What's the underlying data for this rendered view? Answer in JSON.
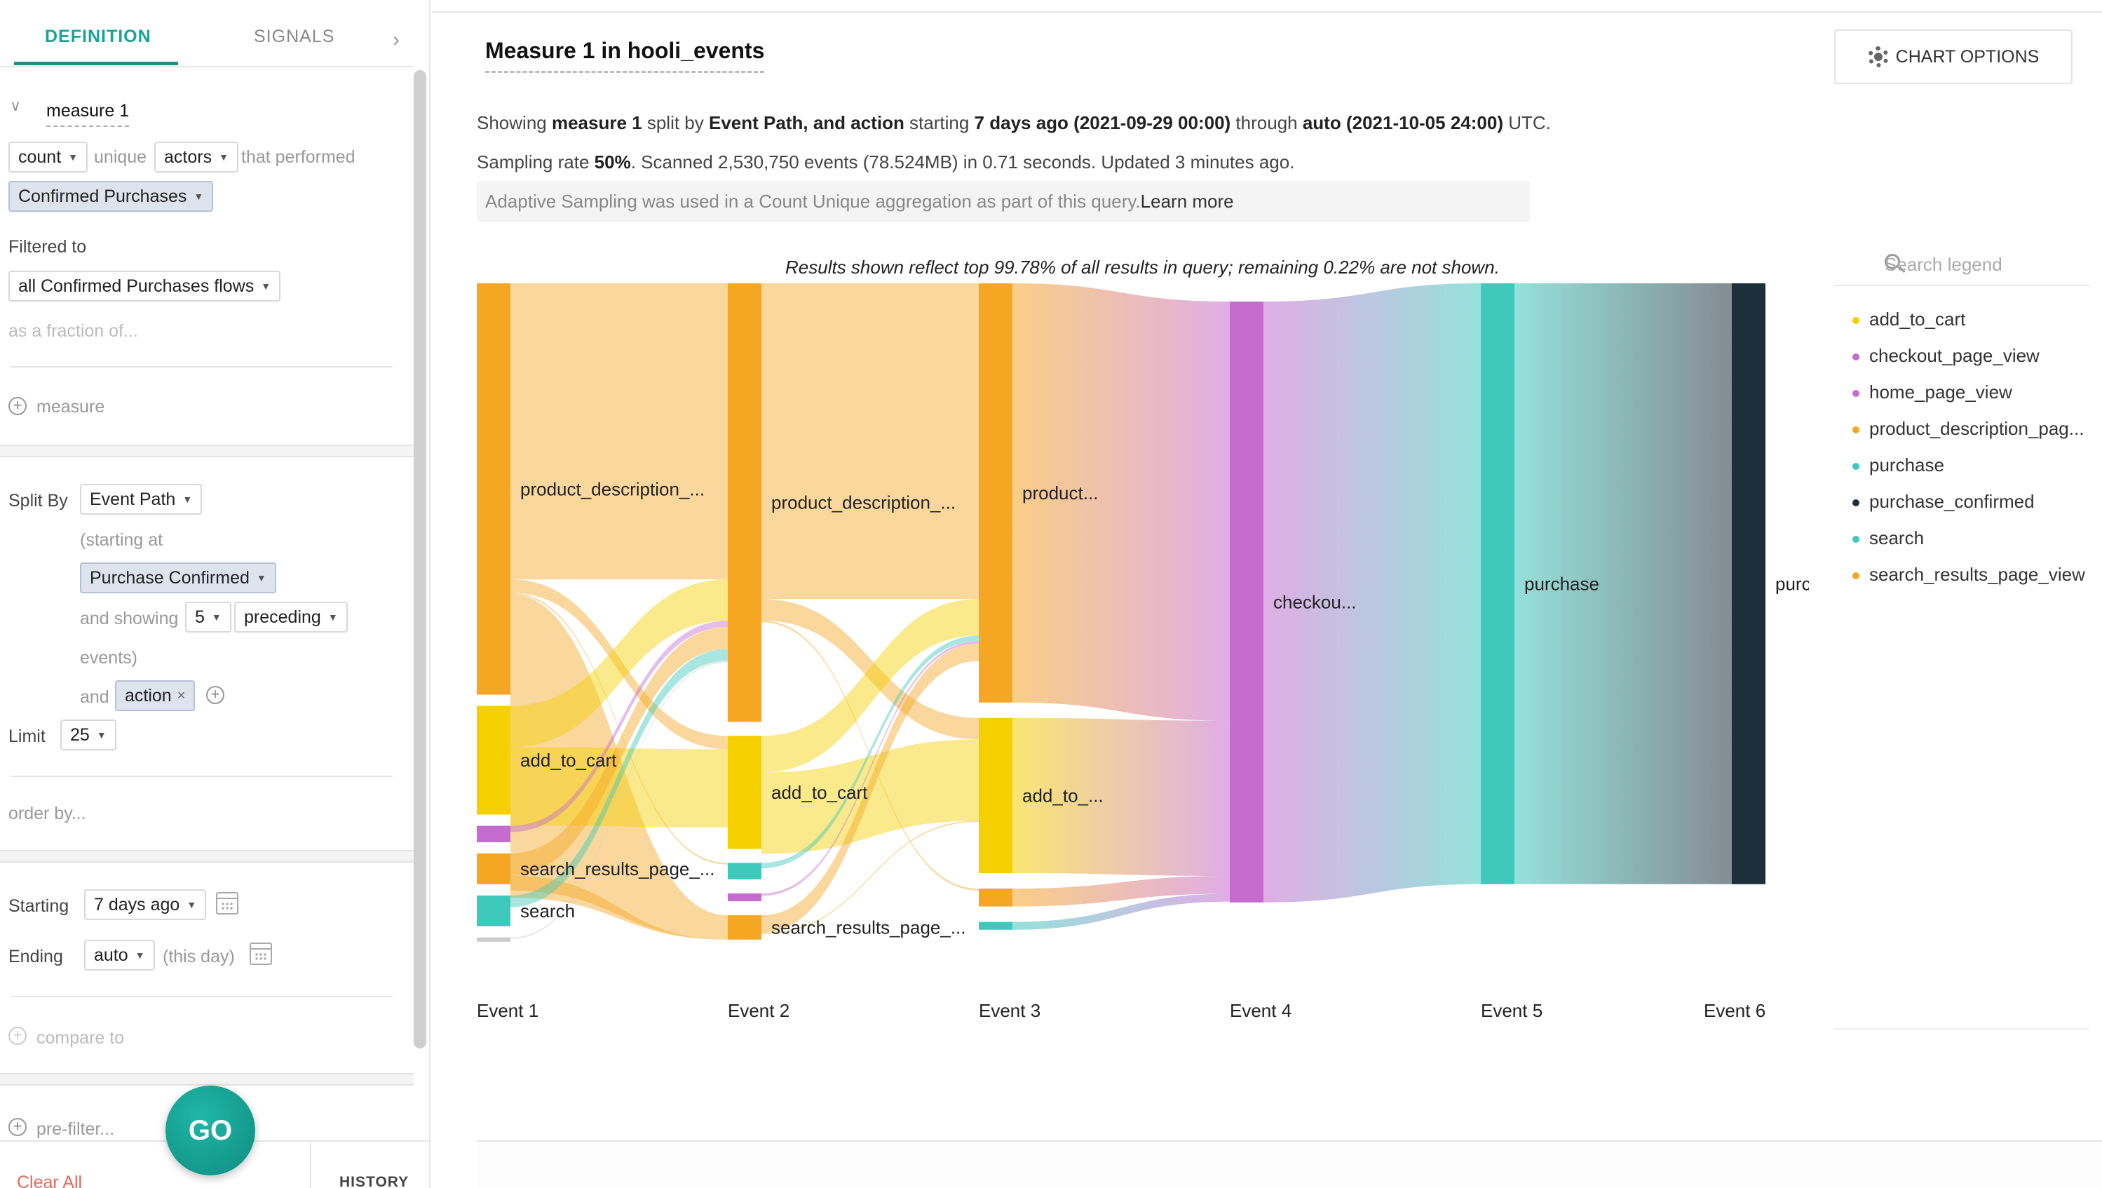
{
  "sidebar": {
    "tabs": [
      {
        "label": "DEFINITION"
      },
      {
        "label": "SIGNALS"
      }
    ],
    "collapse_icon": "chevron-right-icon",
    "measure": {
      "name": "measure 1",
      "aggregation": "count",
      "unique_label": "unique",
      "subject": "actors",
      "performed_label": "that performed",
      "event": "Confirmed Purchases",
      "filtered_label": "Filtered to",
      "filter": "all Confirmed Purchases flows",
      "fraction_label": "as a fraction of...",
      "add_measure": "measure"
    },
    "split": {
      "label": "Split By",
      "value": "Event Path",
      "starting_at": "(starting at",
      "start_event": "Purchase Confirmed",
      "showing_label": "and showing",
      "count": "5",
      "direction": "preceding",
      "events_label": "events)",
      "and_label": "and",
      "extra": "action",
      "limit_label": "Limit",
      "limit": "25",
      "order_by": "order by..."
    },
    "time": {
      "starting_label": "Starting",
      "starting": "7 days ago",
      "ending_label": "Ending",
      "ending": "auto",
      "ending_note": "(this day)",
      "compare": "compare to"
    },
    "prefilter": "pre-filter...",
    "go_label": "GO",
    "clear_all": "Clear All",
    "history": "HISTORY"
  },
  "main": {
    "title": "Measure 1 in hooli_events",
    "chart_options": "CHART OPTIONS",
    "summary": {
      "p1": "Showing ",
      "measure": "measure 1",
      "p2": " split by ",
      "split": "Event Path, and action",
      "p3": " starting ",
      "start": "7 days ago (2021-09-29 00:00)",
      "p4": " through ",
      "end": "auto (2021-10-05 24:00)",
      "p5": " UTC."
    },
    "sampling": {
      "p1": "Sampling rate ",
      "rate": "50%",
      "p2": ". Scanned 2,530,750 events (78.524MB) in 0.71 seconds. Updated 3 minutes ago."
    },
    "adaptive_note": "Adaptive Sampling was used in a Count Unique aggregation as part of this query.",
    "learn_more": "Learn more",
    "results_note": "Results shown reflect top 99.78% of all results in query; remaining 0.22% are not shown."
  },
  "legend": {
    "search_placeholder": "Search legend",
    "items": [
      {
        "label": "add_to_cart",
        "color": "#f5d000"
      },
      {
        "label": "checkout_page_view",
        "color": "#c66bd0"
      },
      {
        "label": "home_page_view",
        "color": "#c66bd0"
      },
      {
        "label": "product_description_pag...",
        "color": "#f5a623"
      },
      {
        "label": "purchase",
        "color": "#3ec9bc"
      },
      {
        "label": "purchase_confirmed",
        "color": "#1e2f3c"
      },
      {
        "label": "search",
        "color": "#3ec9bc"
      },
      {
        "label": "search_results_page_view",
        "color": "#f5a623"
      }
    ]
  },
  "chart_data": {
    "type": "sankey",
    "stages": [
      "Event 1",
      "Event 2",
      "Event 3",
      "Event 4",
      "Event 5",
      "Event 6"
    ],
    "nodes": [
      {
        "stage": 0,
        "label": "product_description_...",
        "value": 57.5,
        "color": "#f5a623"
      },
      {
        "stage": 0,
        "label": "add_to_cart",
        "value": 15.2,
        "color": "#f5d000"
      },
      {
        "stage": 0,
        "label": "",
        "value": 2.3,
        "color": "#c66bd0"
      },
      {
        "stage": 0,
        "label": "search_results_page_...",
        "value": 4.3,
        "color": "#f5a623"
      },
      {
        "stage": 0,
        "label": "search",
        "value": 4.3,
        "color": "#3ec9bc"
      },
      {
        "stage": 0,
        "label": "",
        "value": 0.6,
        "color": "#cccccc"
      },
      {
        "stage": 1,
        "label": "product_description_...",
        "value": 61.3,
        "color": "#f5a623"
      },
      {
        "stage": 1,
        "label": "add_to_cart",
        "value": 15.8,
        "color": "#f5d000"
      },
      {
        "stage": 1,
        "label": "",
        "value": 2.3,
        "color": "#3ec9bc"
      },
      {
        "stage": 1,
        "label": "",
        "value": 1.1,
        "color": "#c66bd0"
      },
      {
        "stage": 1,
        "label": "search_results_page_...",
        "value": 3.4,
        "color": "#f5a623"
      },
      {
        "stage": 2,
        "label": "product...",
        "value": 58.6,
        "color": "#f5a623"
      },
      {
        "stage": 2,
        "label": "add_to_...",
        "value": 21.7,
        "color": "#f5d000"
      },
      {
        "stage": 2,
        "label": "",
        "value": 2.5,
        "color": "#f5a623"
      },
      {
        "stage": 2,
        "label": "",
        "value": 1.1,
        "color": "#3ec9bc"
      },
      {
        "stage": 3,
        "label": "checkou...",
        "value": 84.0,
        "color": "#c66bd0"
      },
      {
        "stage": 4,
        "label": "purchase",
        "value": 84.0,
        "color": "#3ec9bc"
      },
      {
        "stage": 5,
        "label": "purchase_confirmed",
        "value": 84.0,
        "color": "#1e2f3c"
      }
    ]
  }
}
